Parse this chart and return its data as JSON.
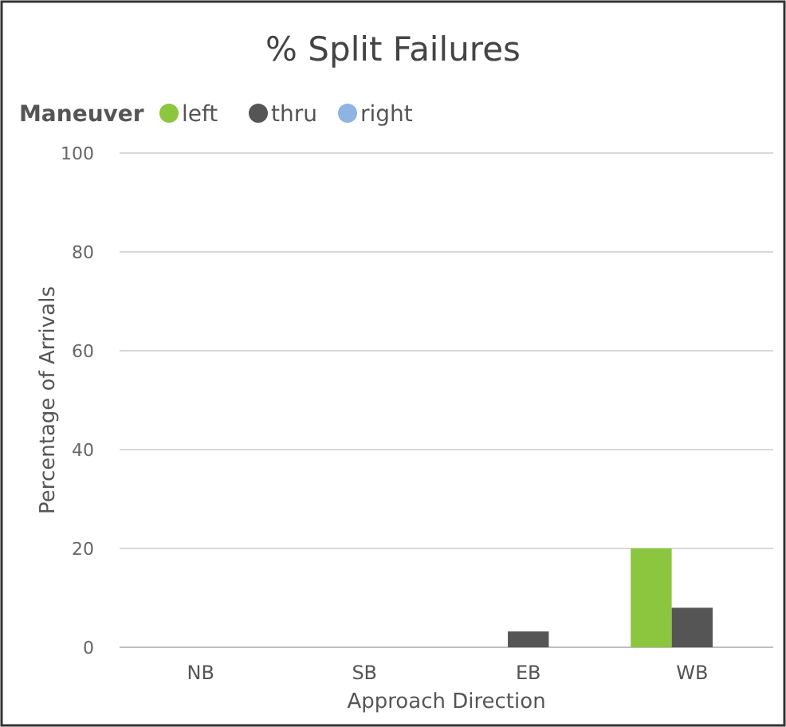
{
  "chart_data": {
    "type": "bar",
    "title": "% Split Failures",
    "xlabel": "Approach Direction",
    "ylabel": "Percentage of Arrivals",
    "legend_title": "Maneuver",
    "legend": "top left",
    "grid": "y",
    "categories": [
      "NB",
      "SB",
      "EB",
      "WB"
    ],
    "series": [
      {
        "name": "left",
        "color": "#8cc63f",
        "values": [
          0,
          0,
          0,
          20
        ]
      },
      {
        "name": "thru",
        "color": "#555555",
        "values": [
          0,
          0,
          3.2,
          8
        ]
      },
      {
        "name": "right",
        "color": "#8db4e2",
        "values": [
          0,
          0,
          0,
          0
        ]
      }
    ],
    "ylim": [
      0,
      100
    ],
    "yticks": [
      0,
      20,
      40,
      60,
      80,
      100
    ]
  }
}
